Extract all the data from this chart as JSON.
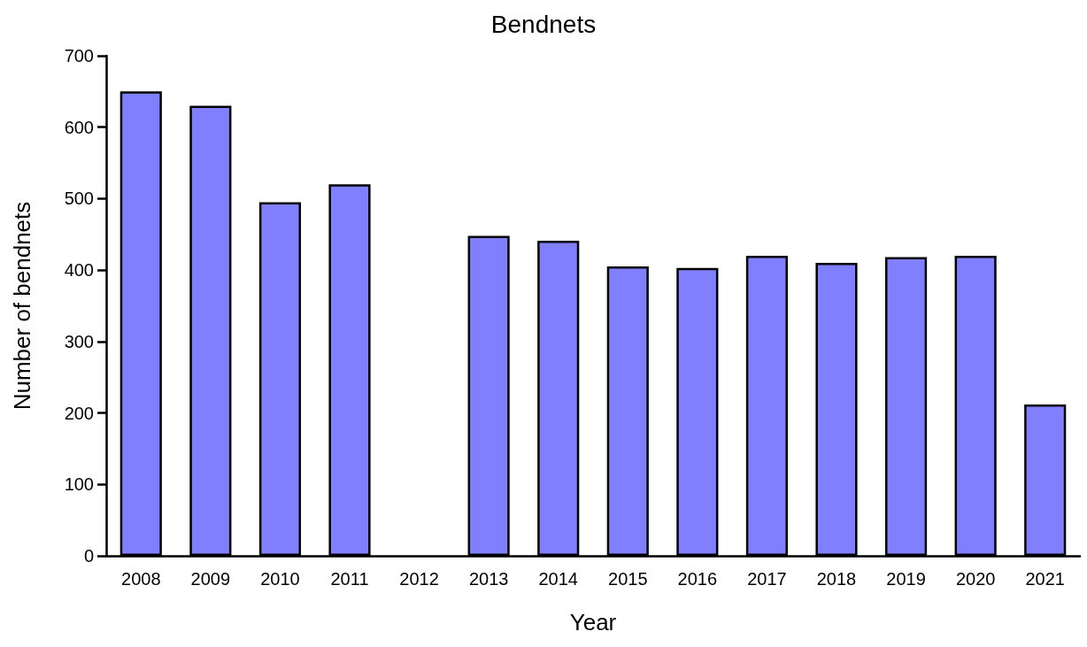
{
  "chart_data": {
    "type": "bar",
    "title": "Bendnets",
    "xlabel": "Year",
    "ylabel": "Number of bendnets",
    "categories": [
      "2008",
      "2009",
      "2010",
      "2011",
      "2012",
      "2013",
      "2014",
      "2015",
      "2016",
      "2017",
      "2018",
      "2019",
      "2020",
      "2021"
    ],
    "values": [
      650,
      630,
      495,
      520,
      null,
      448,
      441,
      405,
      403,
      420,
      410,
      418,
      420,
      212
    ],
    "color": "#8080ff",
    "ylim": [
      0,
      700
    ],
    "yticks": [
      0,
      100,
      200,
      300,
      400,
      500,
      600,
      700
    ],
    "grid": false
  }
}
